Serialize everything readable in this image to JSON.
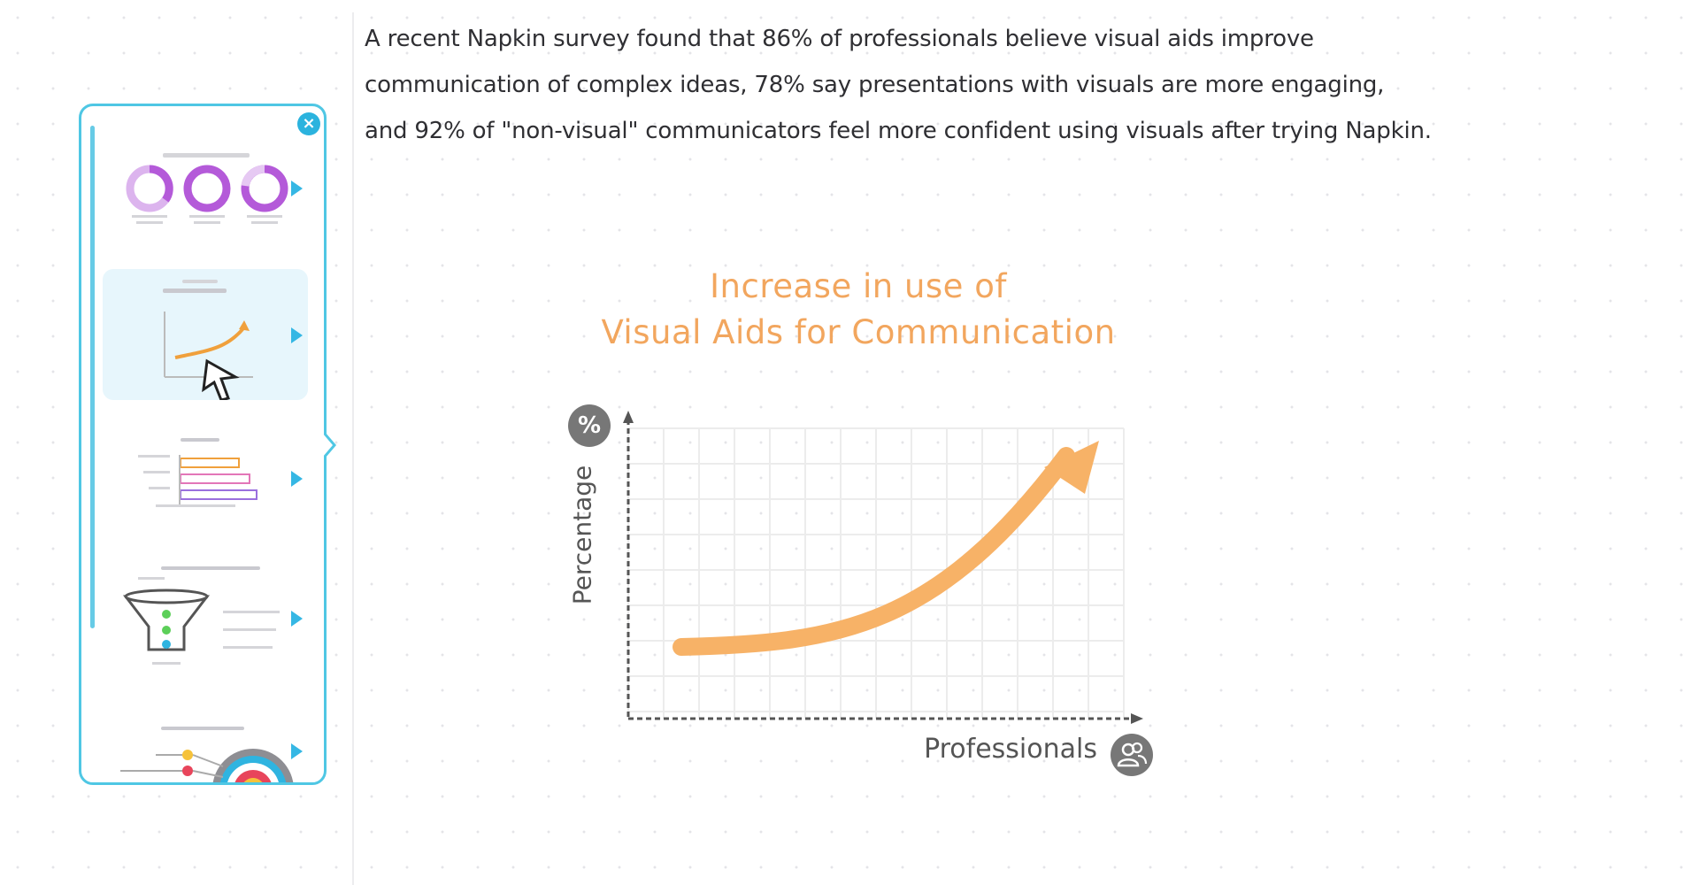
{
  "paragraph": {
    "line1": "A recent Napkin survey found that 86% of professionals believe visual aids improve",
    "line2": "communication of complex ideas, 78% say presentations with visuals are more engaging,",
    "line3": "and 92% of \"non-visual\" communicators feel more confident using visuals after trying Napkin."
  },
  "panel": {
    "close_icon": "close-icon",
    "cards": [
      {
        "kind": "donut-stats",
        "icon": "donut-chart-icon"
      },
      {
        "kind": "line-chart",
        "icon": "line-chart-icon",
        "selected": true
      },
      {
        "kind": "bar-chart",
        "icon": "bar-chart-icon"
      },
      {
        "kind": "funnel",
        "icon": "funnel-icon"
      },
      {
        "kind": "target",
        "icon": "target-icon"
      }
    ]
  },
  "chart_data": {
    "type": "line",
    "title_line1": "Increase in use of",
    "title_line2": "Visual Aids for Communication",
    "xlabel": "Professionals",
    "ylabel": "Percentage",
    "y_badge": "%",
    "x_badge_icon": "people-icon",
    "grid": true,
    "curve": "exponential-arrow",
    "colors": {
      "curve": "#f7b267",
      "title": "#f2a65e",
      "axis": "#555555",
      "badge": "#777777"
    }
  },
  "colors": {
    "accent": "#4fc7e4",
    "text": "#2f2f33"
  }
}
